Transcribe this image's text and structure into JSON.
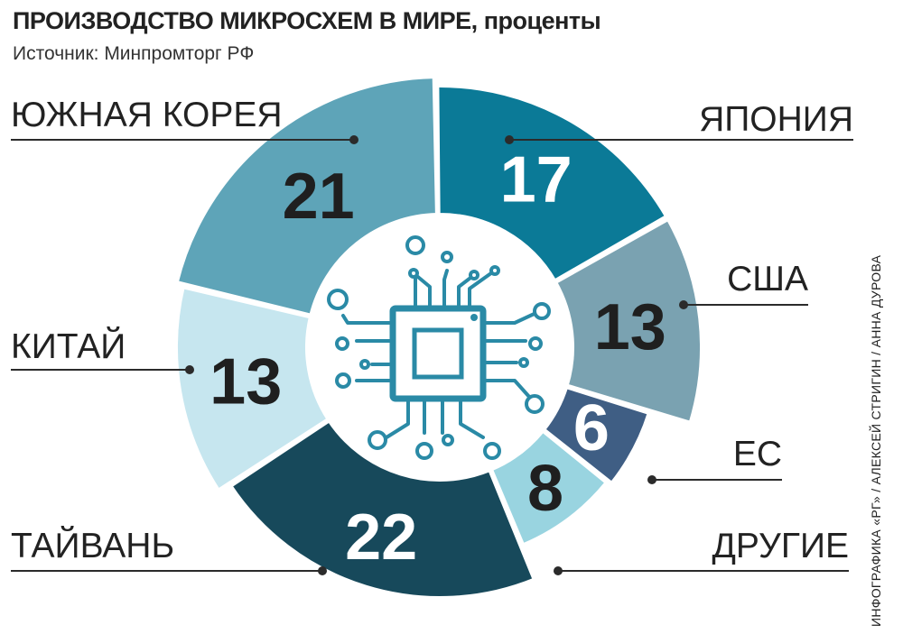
{
  "header": {
    "title": "ПРОИЗВОДСТВО МИКРОСХЕМ В МИРЕ,",
    "unit": "проценты",
    "source": "Источник: Минпромторг РФ"
  },
  "credit": "ИНФОГРАФИКА «РГ» / АЛЕКСЕЙ СТРИГИН / АННА ДУРОВА",
  "center_icon": "microchip-icon",
  "chart_data": {
    "type": "pie",
    "donut": true,
    "unit": "проценты",
    "slices": [
      {
        "label": "ЯПОНИЯ",
        "value": 17,
        "color": "#0b7a97"
      },
      {
        "label": "США",
        "value": 13,
        "color": "#7aa2b1"
      },
      {
        "label": "ЕС",
        "value": 6,
        "color": "#3f5e84"
      },
      {
        "label": "ДРУГИЕ",
        "value": 8,
        "color": "#99d4e0"
      },
      {
        "label": "ТАЙВАНЬ",
        "value": 22,
        "color": "#17495b"
      },
      {
        "label": "КИТАЙ",
        "value": 13,
        "color": "#c6e6ef"
      },
      {
        "label": "ЮЖНАЯ КОРЕЯ",
        "value": 21,
        "color": "#5ea4b8"
      }
    ]
  }
}
